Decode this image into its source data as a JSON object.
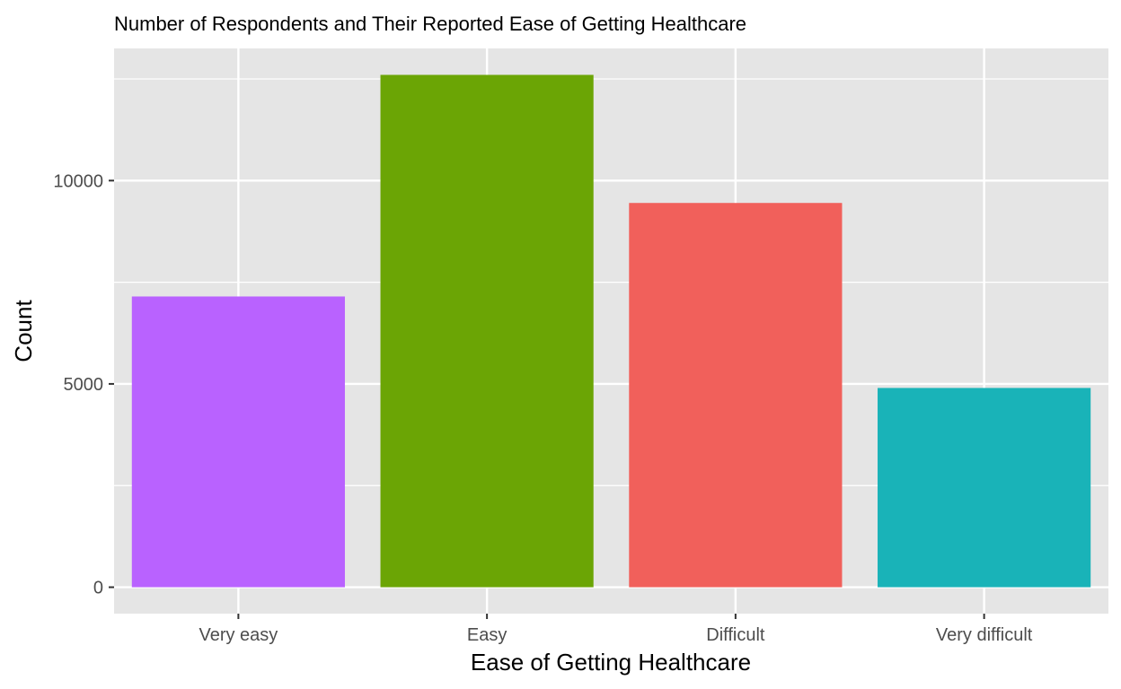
{
  "chart_data": {
    "type": "bar",
    "title": "Number of Respondents and Their Reported Ease of Getting Healthcare",
    "xlabel": "Ease of Getting Healthcare",
    "ylabel": "Count",
    "categories": [
      "Very easy",
      "Easy",
      "Difficult",
      "Very difficult"
    ],
    "values": [
      7150,
      12600,
      9450,
      4900
    ],
    "colors": [
      "#B962FF",
      "#6BA505",
      "#F1605B",
      "#19B3B8"
    ],
    "ylim": [
      -650,
      13250
    ],
    "yticks": [
      0,
      5000,
      10000
    ],
    "ytick_labels": [
      "0",
      "5000",
      "10000"
    ],
    "grid": true,
    "panel_background": "#E5E5E5",
    "legend": "none"
  }
}
